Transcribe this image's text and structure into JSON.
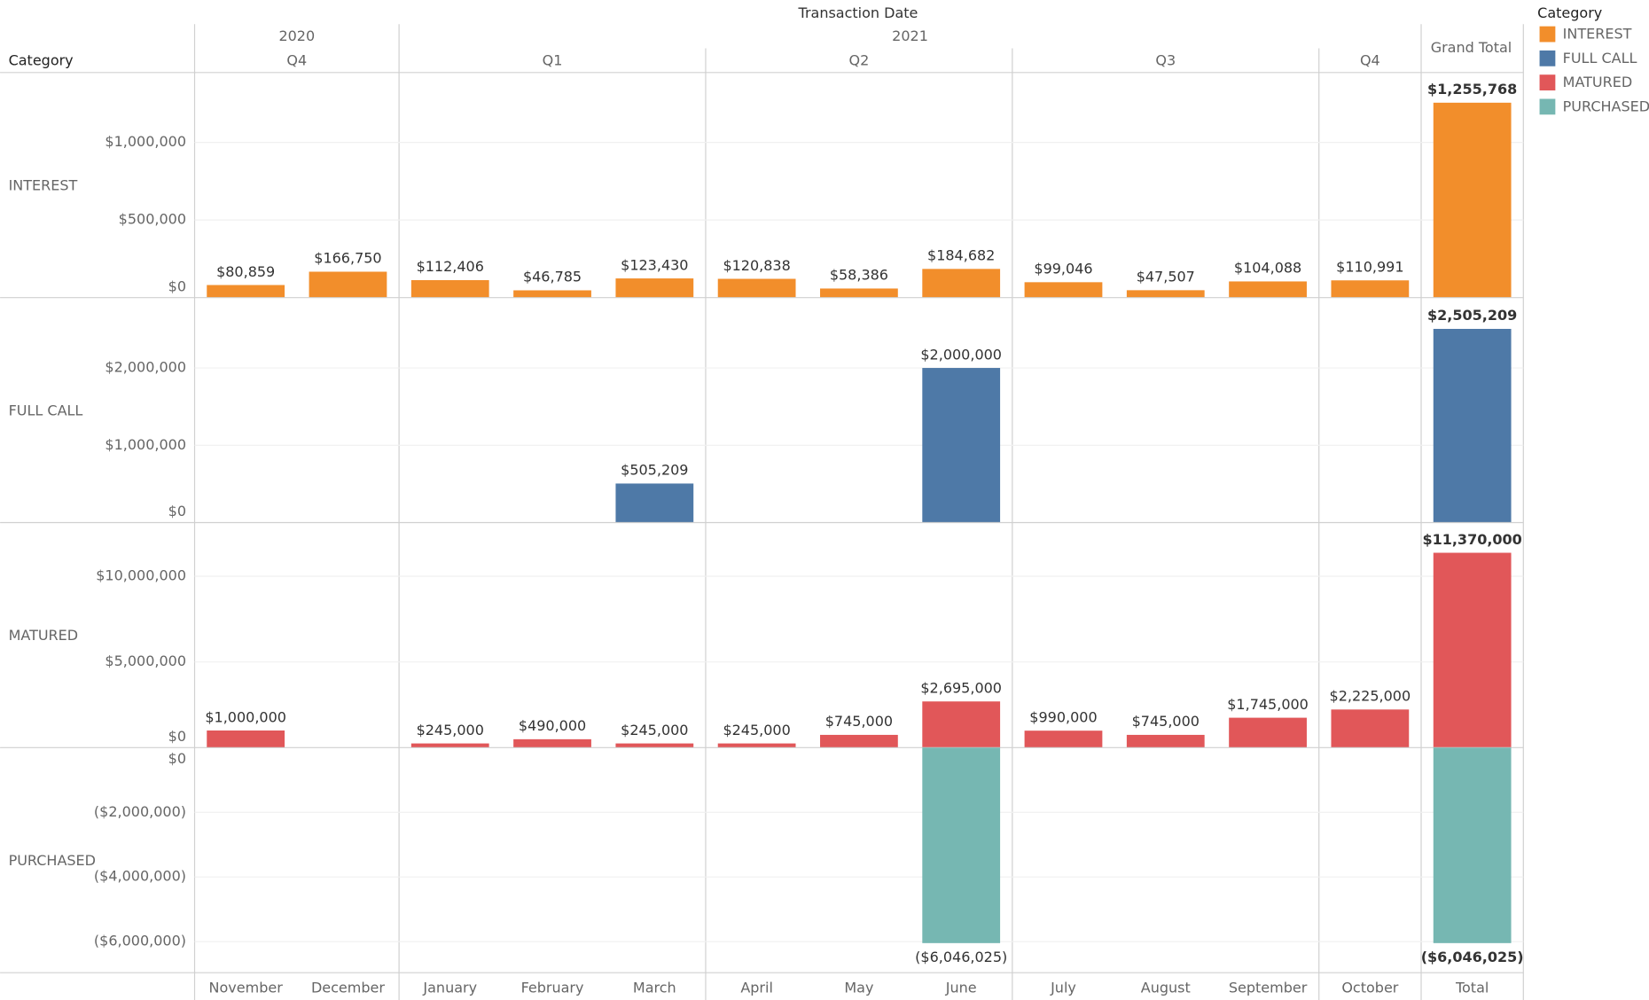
{
  "columns": {
    "title": "Transaction Date",
    "row_header": "Category",
    "total_header": "Grand Total",
    "total_label": "Total",
    "years": [
      {
        "label": "2020",
        "quarters": [
          {
            "label": "Q4",
            "months": [
              "November",
              "December"
            ]
          }
        ]
      },
      {
        "label": "2021",
        "quarters": [
          {
            "label": "Q1",
            "months": [
              "January",
              "February",
              "March"
            ]
          },
          {
            "label": "Q2",
            "months": [
              "April",
              "May",
              "June"
            ]
          },
          {
            "label": "Q3",
            "months": [
              "July",
              "August",
              "September"
            ]
          },
          {
            "label": "Q4",
            "months": [
              "October"
            ]
          }
        ]
      }
    ]
  },
  "legend": {
    "title": "Category"
  },
  "chart_data": [
    {
      "type": "bar",
      "name": "INTEREST",
      "color": "#f28e2b",
      "values": [
        80859,
        166750,
        112406,
        46785,
        123430,
        120838,
        58386,
        184682,
        99046,
        47507,
        104088,
        110991
      ],
      "value_labels": [
        "$80,859",
        "$166,750",
        "$112,406",
        "$46,785",
        "$123,430",
        "$120,838",
        "$58,386",
        "$184,682",
        "$99,046",
        "$47,507",
        "$104,088",
        "$110,991"
      ],
      "total": 1255768,
      "total_label": "$1,255,768",
      "ylim": [
        0,
        1450000
      ],
      "yticks": [
        {
          "value": 0,
          "label": "$0"
        },
        {
          "value": 500000,
          "label": "$500,000"
        },
        {
          "value": 1000000,
          "label": "$1,000,000"
        }
      ]
    },
    {
      "type": "bar",
      "name": "FULL CALL",
      "color": "#4e79a7",
      "values": [
        null,
        null,
        null,
        null,
        505209,
        null,
        null,
        2000000,
        null,
        null,
        null,
        null
      ],
      "value_labels": [
        null,
        null,
        null,
        null,
        "$505,209",
        null,
        null,
        "$2,000,000",
        null,
        null,
        null,
        null
      ],
      "total": 2505209,
      "total_label": "$2,505,209",
      "ylim": [
        0,
        2910000
      ],
      "yticks": [
        {
          "value": 0,
          "label": "$0"
        },
        {
          "value": 1000000,
          "label": "$1,000,000"
        },
        {
          "value": 2000000,
          "label": "$2,000,000"
        }
      ]
    },
    {
      "type": "bar",
      "name": "MATURED",
      "color": "#e15759",
      "values": [
        1000000,
        null,
        245000,
        490000,
        245000,
        245000,
        745000,
        2695000,
        990000,
        745000,
        1745000,
        2225000
      ],
      "value_labels": [
        "$1,000,000",
        null,
        "$245,000",
        "$490,000",
        "$245,000",
        "$245,000",
        "$745,000",
        "$2,695,000",
        "$990,000",
        "$745,000",
        "$1,745,000",
        "$2,225,000"
      ],
      "total": 11370000,
      "total_label": "$11,370,000",
      "ylim": [
        0,
        13130000
      ],
      "yticks": [
        {
          "value": 0,
          "label": "$0"
        },
        {
          "value": 5000000,
          "label": "$5,000,000"
        },
        {
          "value": 10000000,
          "label": "$10,000,000"
        }
      ]
    },
    {
      "type": "bar",
      "name": "PURCHASED",
      "color": "#76b7b2",
      "values": [
        null,
        null,
        null,
        null,
        null,
        null,
        null,
        -6046025,
        null,
        null,
        null,
        null
      ],
      "value_labels": [
        null,
        null,
        null,
        null,
        null,
        null,
        null,
        "($6,046,025)",
        null,
        null,
        null,
        null
      ],
      "total": -6046025,
      "total_label": "($6,046,025)",
      "ylim": [
        -6960000,
        0
      ],
      "yticks": [
        {
          "value": 0,
          "label": "$0"
        },
        {
          "value": -2000000,
          "label": "($2,000,000)"
        },
        {
          "value": -4000000,
          "label": "($4,000,000)"
        },
        {
          "value": -6000000,
          "label": "($6,000,000)"
        }
      ]
    }
  ]
}
